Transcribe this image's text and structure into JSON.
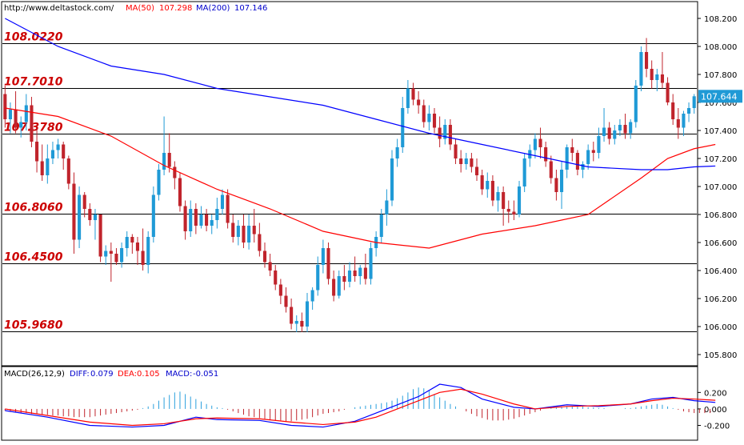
{
  "colors": {
    "ma50": "#ff0000",
    "ma200": "#0000ff",
    "bull": "#1f9ad6",
    "bear": "#c0242c",
    "level_label": "#cc0000",
    "macd_pos": "#2aa0dd",
    "macd_neg": "#c0242c",
    "diff_line": "#0000ff",
    "dea_line": "#ff0000",
    "last_price_bg": "#1f9ad6",
    "header_text": "#0000cc",
    "ma50_text": "#ff0000"
  },
  "header": {
    "url": "http://www.deltastock.com/",
    "ma50_label": "MA(50)",
    "ma50_value": "107.298",
    "ma200_label": "MA(200)",
    "ma200_value": "107.146"
  },
  "macd_header": {
    "title": "MACD(26,12,9)",
    "diff_label": "DIFF:",
    "diff_value": "0.079",
    "dea_label": "DEA:",
    "dea_value": "0.105",
    "macd_label": "MACD:",
    "macd_value": "-0.051"
  },
  "chart_data": [
    {
      "type": "candlestick",
      "title": "",
      "ylim": [
        105.72,
        108.32
      ],
      "y_ticks": [
        "108.200",
        "108.000",
        "107.800",
        "107.600",
        "107.400",
        "107.200",
        "107.000",
        "106.800",
        "106.600",
        "106.400",
        "106.200",
        "106.000",
        "105.800"
      ],
      "last_price": "107.644",
      "levels": [
        {
          "label": "108.0220",
          "value": 108.022
        },
        {
          "label": "107.7010",
          "value": 107.701
        },
        {
          "label": "107.3780",
          "value": 107.378
        },
        {
          "label": "106.8060",
          "value": 106.806
        },
        {
          "label": "106.4500",
          "value": 106.45
        },
        {
          "label": "105.9680",
          "value": 105.968
        }
      ],
      "candles": [
        [
          107.66,
          107.72,
          107.42,
          107.48
        ],
        [
          107.48,
          107.6,
          107.38,
          107.55
        ],
        [
          107.55,
          107.68,
          107.38,
          107.42
        ],
        [
          107.42,
          107.5,
          107.35,
          107.46
        ],
        [
          107.46,
          107.66,
          107.4,
          107.58
        ],
        [
          107.58,
          107.64,
          107.28,
          107.32
        ],
        [
          107.32,
          107.42,
          107.1,
          107.18
        ],
        [
          107.18,
          107.3,
          107.04,
          107.08
        ],
        [
          107.08,
          107.3,
          107.02,
          107.2
        ],
        [
          107.2,
          107.32,
          107.16,
          107.26
        ],
        [
          107.26,
          107.34,
          107.2,
          107.3
        ],
        [
          107.3,
          107.32,
          107.12,
          107.2
        ],
        [
          107.2,
          107.22,
          106.98,
          107.02
        ],
        [
          107.02,
          107.1,
          106.52,
          106.62
        ],
        [
          106.62,
          107.0,
          106.56,
          106.94
        ],
        [
          106.94,
          106.96,
          106.78,
          106.84
        ],
        [
          106.84,
          106.88,
          106.72,
          106.76
        ],
        [
          106.76,
          106.84,
          106.62,
          106.8
        ],
        [
          106.8,
          106.8,
          106.46,
          106.5
        ],
        [
          106.5,
          106.58,
          106.44,
          106.54
        ],
        [
          106.54,
          106.6,
          106.32,
          106.52
        ],
        [
          106.52,
          106.56,
          106.44,
          106.46
        ],
        [
          106.46,
          106.6,
          106.42,
          106.56
        ],
        [
          106.56,
          106.68,
          106.5,
          106.64
        ],
        [
          106.64,
          106.66,
          106.52,
          106.6
        ],
        [
          106.6,
          106.64,
          106.44,
          106.54
        ],
        [
          106.54,
          106.7,
          106.4,
          106.44
        ],
        [
          106.44,
          106.68,
          106.38,
          106.64
        ],
        [
          106.64,
          107.0,
          106.6,
          106.94
        ],
        [
          106.94,
          107.16,
          106.9,
          107.12
        ],
        [
          107.12,
          107.5,
          107.08,
          107.24
        ],
        [
          107.24,
          107.38,
          107.1,
          107.14
        ],
        [
          107.14,
          107.18,
          106.98,
          107.06
        ],
        [
          107.06,
          107.1,
          106.82,
          106.86
        ],
        [
          106.86,
          106.9,
          106.62,
          106.68
        ],
        [
          106.68,
          106.9,
          106.64,
          106.84
        ],
        [
          106.84,
          106.88,
          106.66,
          106.72
        ],
        [
          106.72,
          106.86,
          106.7,
          106.8
        ],
        [
          106.8,
          106.84,
          106.68,
          106.72
        ],
        [
          106.72,
          106.8,
          106.66,
          106.76
        ],
        [
          106.76,
          106.92,
          106.7,
          106.84
        ],
        [
          106.84,
          106.98,
          106.8,
          106.94
        ],
        [
          106.94,
          106.98,
          106.7,
          106.74
        ],
        [
          106.74,
          106.8,
          106.6,
          106.64
        ],
        [
          106.64,
          106.76,
          106.58,
          106.72
        ],
        [
          106.72,
          106.8,
          106.56,
          106.6
        ],
        [
          106.6,
          106.8,
          106.55,
          106.72
        ],
        [
          106.72,
          106.84,
          106.6,
          106.66
        ],
        [
          106.66,
          106.74,
          106.5,
          106.54
        ],
        [
          106.54,
          106.6,
          106.42,
          106.46
        ],
        [
          106.46,
          106.52,
          106.36,
          106.4
        ],
        [
          106.4,
          106.44,
          106.26,
          106.3
        ],
        [
          106.3,
          106.34,
          106.16,
          106.22
        ],
        [
          106.22,
          106.28,
          106.1,
          106.14
        ],
        [
          106.14,
          106.2,
          105.98,
          106.02
        ],
        [
          106.02,
          106.08,
          105.96,
          106.04
        ],
        [
          106.04,
          106.1,
          105.96,
          106.0
        ],
        [
          106.0,
          106.24,
          105.96,
          106.18
        ],
        [
          106.18,
          106.28,
          106.12,
          106.26
        ],
        [
          106.26,
          106.5,
          106.22,
          106.44
        ],
        [
          106.44,
          106.62,
          106.38,
          106.56
        ],
        [
          106.56,
          106.6,
          106.3,
          106.34
        ],
        [
          106.34,
          106.4,
          106.18,
          106.22
        ],
        [
          106.22,
          106.4,
          106.2,
          106.36
        ],
        [
          106.36,
          106.44,
          106.26,
          106.32
        ],
        [
          106.32,
          106.46,
          106.28,
          106.4
        ],
        [
          106.4,
          106.5,
          106.32,
          106.36
        ],
        [
          106.36,
          106.44,
          106.3,
          106.42
        ],
        [
          106.42,
          106.52,
          106.3,
          106.34
        ],
        [
          106.34,
          106.6,
          106.3,
          106.56
        ],
        [
          106.56,
          106.68,
          106.5,
          106.64
        ],
        [
          106.64,
          106.84,
          106.6,
          106.8
        ],
        [
          106.8,
          106.98,
          106.72,
          106.9
        ],
        [
          106.9,
          107.26,
          106.86,
          107.2
        ],
        [
          107.2,
          107.34,
          107.14,
          107.28
        ],
        [
          107.28,
          107.64,
          107.24,
          107.56
        ],
        [
          107.56,
          107.76,
          107.52,
          107.7
        ],
        [
          107.7,
          107.74,
          107.58,
          107.62
        ],
        [
          107.62,
          107.68,
          107.52,
          107.58
        ],
        [
          107.58,
          107.62,
          107.42,
          107.46
        ],
        [
          107.46,
          107.58,
          107.4,
          107.52
        ],
        [
          107.52,
          107.56,
          107.38,
          107.42
        ],
        [
          107.42,
          107.5,
          107.28,
          107.34
        ],
        [
          107.34,
          107.48,
          107.3,
          107.44
        ],
        [
          107.44,
          107.48,
          107.26,
          107.3
        ],
        [
          107.3,
          107.34,
          107.16,
          107.2
        ],
        [
          107.2,
          107.26,
          107.1,
          107.16
        ],
        [
          107.16,
          107.24,
          107.12,
          107.2
        ],
        [
          107.2,
          107.24,
          107.1,
          107.14
        ],
        [
          107.14,
          107.2,
          107.04,
          107.08
        ],
        [
          107.08,
          107.12,
          106.94,
          106.98
        ],
        [
          106.98,
          107.1,
          106.92,
          107.04
        ],
        [
          107.04,
          107.08,
          106.86,
          106.9
        ],
        [
          106.9,
          107.0,
          106.82,
          106.96
        ],
        [
          106.96,
          107.0,
          106.72,
          106.84
        ],
        [
          106.84,
          106.9,
          106.74,
          106.82
        ],
        [
          106.82,
          106.9,
          106.76,
          106.8
        ],
        [
          106.8,
          107.04,
          106.78,
          107.0
        ],
        [
          107.0,
          107.24,
          106.96,
          107.2
        ],
        [
          107.2,
          107.3,
          107.14,
          107.26
        ],
        [
          107.26,
          107.38,
          107.2,
          107.34
        ],
        [
          107.34,
          107.42,
          107.2,
          107.28
        ],
        [
          107.28,
          107.32,
          107.14,
          107.18
        ],
        [
          107.18,
          107.22,
          107.02,
          107.06
        ],
        [
          107.06,
          107.12,
          106.9,
          106.96
        ],
        [
          106.96,
          107.18,
          106.84,
          107.12
        ],
        [
          107.12,
          107.3,
          107.06,
          107.28
        ],
        [
          107.28,
          107.34,
          107.18,
          107.24
        ],
        [
          107.24,
          107.26,
          107.08,
          107.12
        ],
        [
          107.12,
          107.18,
          107.06,
          107.16
        ],
        [
          107.16,
          107.3,
          107.12,
          107.26
        ],
        [
          107.26,
          107.32,
          107.18,
          107.24
        ],
        [
          107.24,
          107.42,
          107.2,
          107.36
        ],
        [
          107.36,
          107.56,
          107.32,
          107.42
        ],
        [
          107.42,
          107.46,
          107.3,
          107.34
        ],
        [
          107.34,
          107.44,
          107.3,
          107.4
        ],
        [
          107.4,
          107.48,
          107.36,
          107.44
        ],
        [
          107.44,
          107.52,
          107.34,
          107.38
        ],
        [
          107.38,
          107.48,
          107.34,
          107.46
        ],
        [
          107.46,
          107.76,
          107.42,
          107.72
        ],
        [
          107.72,
          108.0,
          107.68,
          107.96
        ],
        [
          107.96,
          108.06,
          107.78,
          107.84
        ],
        [
          107.84,
          107.9,
          107.7,
          107.76
        ],
        [
          107.76,
          107.84,
          107.68,
          107.8
        ],
        [
          107.8,
          107.96,
          107.7,
          107.74
        ],
        [
          107.74,
          107.78,
          107.58,
          107.6
        ],
        [
          107.6,
          107.66,
          107.44,
          107.48
        ],
        [
          107.48,
          107.56,
          107.34,
          107.42
        ],
        [
          107.42,
          107.54,
          107.36,
          107.52
        ],
        [
          107.52,
          107.6,
          107.46,
          107.56
        ],
        [
          107.56,
          107.66,
          107.52,
          107.644
        ]
      ],
      "series": [
        {
          "name": "MA(50)",
          "x": [
            0,
            10,
            20,
            30,
            40,
            50,
            60,
            70,
            80,
            90,
            100,
            110,
            120,
            125,
            130,
            134
          ],
          "values": [
            107.56,
            107.5,
            107.36,
            107.15,
            106.98,
            106.84,
            106.68,
            106.6,
            106.56,
            106.66,
            106.72,
            106.8,
            107.06,
            107.2,
            107.27,
            107.3
          ]
        },
        {
          "name": "MA(200)",
          "x": [
            0,
            10,
            20,
            30,
            40,
            50,
            60,
            70,
            80,
            90,
            100,
            110,
            120,
            125,
            130,
            134
          ],
          "values": [
            108.2,
            108.0,
            107.86,
            107.8,
            107.7,
            107.64,
            107.58,
            107.48,
            107.38,
            107.3,
            107.22,
            107.14,
            107.12,
            107.12,
            107.14,
            107.146
          ]
        }
      ]
    },
    {
      "type": "macd",
      "title": "MACD(26,12,9)",
      "ylim": [
        -0.38,
        0.32
      ],
      "y_ticks": [
        "0.200",
        "0.000",
        "-0.200"
      ],
      "histogram": [
        -0.02,
        -0.03,
        -0.04,
        -0.05,
        -0.05,
        -0.06,
        -0.06,
        -0.07,
        -0.07,
        -0.08,
        -0.08,
        -0.09,
        -0.09,
        -0.1,
        -0.1,
        -0.1,
        -0.1,
        -0.09,
        -0.08,
        -0.07,
        -0.06,
        -0.05,
        -0.04,
        -0.03,
        -0.02,
        -0.01,
        0.01,
        0.03,
        0.06,
        0.1,
        0.14,
        0.17,
        0.2,
        0.21,
        0.18,
        0.15,
        0.12,
        0.09,
        0.06,
        0.04,
        0.02,
        0.01,
        -0.01,
        -0.03,
        -0.05,
        -0.07,
        -0.09,
        -0.1,
        -0.11,
        -0.12,
        -0.13,
        -0.14,
        -0.14,
        -0.15,
        -0.15,
        -0.14,
        -0.13,
        -0.12,
        -0.1,
        -0.08,
        -0.06,
        -0.05,
        -0.04,
        -0.03,
        -0.01,
        0.0,
        0.02,
        0.03,
        0.04,
        0.05,
        0.06,
        0.07,
        0.08,
        0.1,
        0.13,
        0.16,
        0.2,
        0.24,
        0.26,
        0.25,
        0.22,
        0.18,
        0.14,
        0.1,
        0.06,
        0.03,
        0.0,
        -0.03,
        -0.06,
        -0.09,
        -0.11,
        -0.13,
        -0.14,
        -0.14,
        -0.14,
        -0.13,
        -0.12,
        -0.1,
        -0.08,
        -0.06,
        -0.04,
        -0.02,
        0.0,
        0.01,
        0.02,
        0.02,
        0.03,
        0.03,
        0.03,
        0.03,
        0.02,
        0.02,
        0.01,
        0.01,
        0.0,
        0.0,
        0.0,
        0.01,
        0.01,
        0.02,
        0.03,
        0.04,
        0.05,
        0.06,
        0.05,
        0.03,
        0.01,
        -0.01,
        -0.03,
        -0.04,
        -0.05,
        -0.05,
        -0.05,
        -0.05
      ],
      "series": [
        {
          "name": "DIFF",
          "x": [
            0,
            8,
            16,
            24,
            30,
            36,
            40,
            48,
            54,
            60,
            66,
            70,
            74,
            78,
            82,
            86,
            90,
            96,
            100,
            106,
            112,
            118,
            122,
            126,
            130,
            134
          ],
          "values": [
            -0.02,
            -0.1,
            -0.2,
            -0.22,
            -0.2,
            -0.1,
            -0.13,
            -0.14,
            -0.2,
            -0.22,
            -0.15,
            -0.05,
            0.05,
            0.15,
            0.3,
            0.26,
            0.12,
            0.02,
            0.0,
            0.05,
            0.03,
            0.06,
            0.12,
            0.14,
            0.1,
            0.079
          ]
        },
        {
          "name": "DEA",
          "x": [
            0,
            8,
            16,
            24,
            30,
            36,
            40,
            48,
            54,
            60,
            66,
            70,
            74,
            78,
            82,
            86,
            90,
            96,
            100,
            106,
            112,
            118,
            122,
            126,
            130,
            134
          ],
          "values": [
            0.0,
            -0.08,
            -0.16,
            -0.2,
            -0.18,
            -0.12,
            -0.11,
            -0.12,
            -0.16,
            -0.19,
            -0.16,
            -0.1,
            0.0,
            0.1,
            0.2,
            0.24,
            0.18,
            0.06,
            0.0,
            0.03,
            0.04,
            0.06,
            0.1,
            0.13,
            0.12,
            0.105
          ]
        }
      ]
    }
  ]
}
